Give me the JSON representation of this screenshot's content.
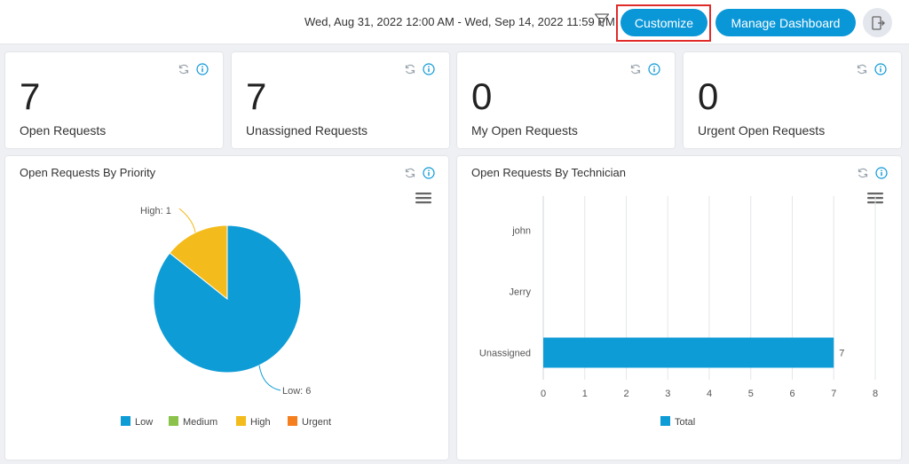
{
  "header": {
    "date_range": "Wed, Aug 31, 2022 12:00 AM - Wed, Sep 14, 2022 11:59 PM",
    "customize_label": "Customize",
    "manage_label": "Manage Dashboard"
  },
  "stats": [
    {
      "value": "7",
      "label": "Open Requests"
    },
    {
      "value": "7",
      "label": "Unassigned Requests"
    },
    {
      "value": "0",
      "label": "My Open Requests"
    },
    {
      "value": "0",
      "label": "Urgent Open Requests"
    }
  ],
  "icons": {
    "refresh": "refresh-icon",
    "info": "info-icon",
    "menu": "hamburger-menu-icon",
    "filter": "filter-icon",
    "exit": "exit-icon"
  },
  "colors": {
    "primary": "#0a97d8",
    "low": "#0e9cd6",
    "medium": "#8bc34a",
    "high": "#f4bb1c",
    "urgent": "#f57f1f",
    "highlight": "#e02b2b"
  },
  "chart_data": [
    {
      "type": "pie",
      "title": "Open Requests By Priority",
      "slices": [
        {
          "label": "Low",
          "value": 6,
          "color": "#0e9cd6",
          "data_label": "Low: 6"
        },
        {
          "label": "Medium",
          "value": 0,
          "color": "#8bc34a",
          "data_label": ""
        },
        {
          "label": "High",
          "value": 1,
          "color": "#f4bb1c",
          "data_label": "High: 1"
        },
        {
          "label": "Urgent",
          "value": 0,
          "color": "#f57f1f",
          "data_label": ""
        }
      ],
      "legend": [
        "Low",
        "Medium",
        "High",
        "Urgent"
      ],
      "legend_position": "bottom"
    },
    {
      "type": "bar",
      "orientation": "horizontal",
      "title": "Open Requests By Technician",
      "categories": [
        "john",
        "Jerry",
        "Unassigned"
      ],
      "series": [
        {
          "name": "Total",
          "values": [
            0,
            0,
            7
          ],
          "color": "#0e9cd6"
        }
      ],
      "xlim": [
        0,
        8
      ],
      "xticks": [
        "0",
        "1",
        "2",
        "3",
        "4",
        "5",
        "6",
        "7",
        "8"
      ],
      "data_labels": [
        "",
        "",
        "7"
      ],
      "grid": "vertical",
      "legend_position": "bottom"
    }
  ]
}
